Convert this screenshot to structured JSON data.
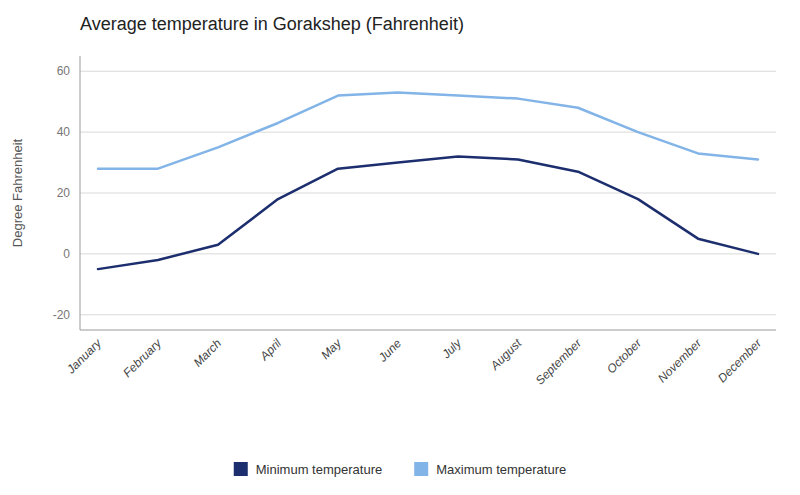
{
  "chart_data": {
    "type": "line",
    "title": "Average temperature in Gorakshep (Fahrenheit)",
    "ylabel": "Degree Fahrenheit",
    "categories": [
      "January",
      "February",
      "March",
      "April",
      "May",
      "June",
      "July",
      "August",
      "September",
      "October",
      "November",
      "December"
    ],
    "series": [
      {
        "name": "Minimum temperature",
        "color": "#1c2e6e",
        "values": [
          -5,
          -2,
          3,
          18,
          28,
          30,
          32,
          31,
          27,
          18,
          5,
          0
        ]
      },
      {
        "name": "Maximum temperature",
        "color": "#82b4e8",
        "values": [
          28,
          28,
          35,
          43,
          52,
          53,
          52,
          51,
          48,
          40,
          33,
          31
        ]
      }
    ],
    "ylim": [
      -25,
      65
    ],
    "yticks": [
      -20,
      0,
      20,
      40,
      60
    ],
    "grid": true,
    "legend": "bottom"
  }
}
